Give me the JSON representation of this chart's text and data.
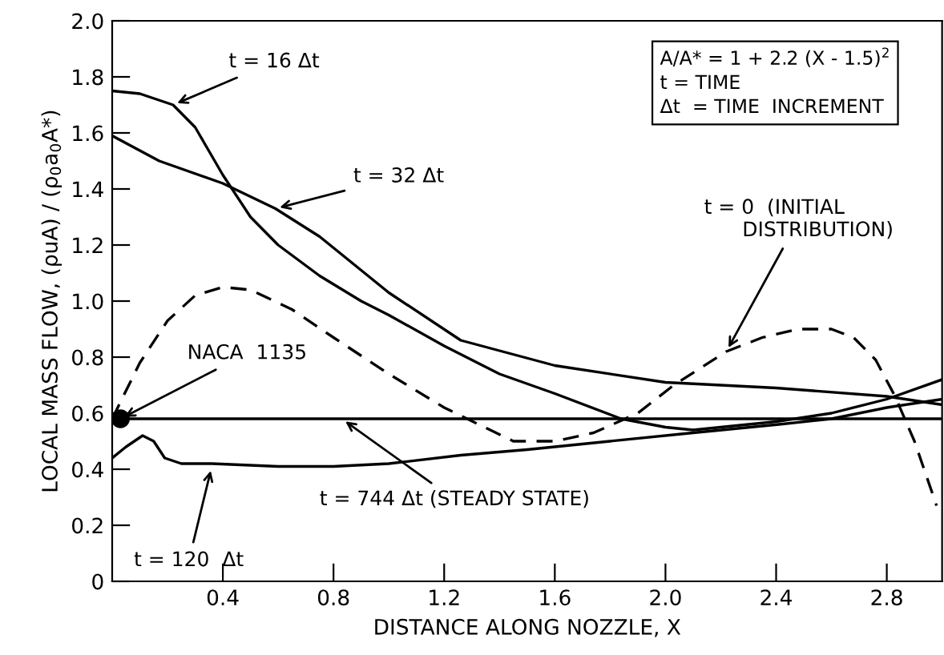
{
  "chart_data": {
    "type": "line",
    "xlabel": "DISTANCE ALONG NOZZLE, X",
    "ylabel": "LOCAL MASS FLOW, (ρuA) / (ρ$_{0}$a$_{0}$A*)",
    "xlim": [
      0,
      3.0
    ],
    "ylim": [
      0,
      2.0
    ],
    "xticks": [
      0.4,
      0.8,
      1.2,
      1.6,
      {
        "value": 2,
        "label": "2.0"
      },
      2.4,
      2.8
    ],
    "yticks": [
      0,
      0.2,
      0.4,
      0.6,
      0.8,
      {
        "value": 1,
        "label": "1.0"
      },
      1.2,
      1.4,
      1.6,
      1.8,
      {
        "value": 2,
        "label": "2.0"
      }
    ],
    "grid": false,
    "legend": false,
    "marker": "none",
    "series": [
      {
        "color": "#000000",
        "line_style": "solid",
        "x": [
          0,
          0.1,
          0.22,
          0.3,
          0.4,
          0.5,
          0.6,
          0.75,
          0.9,
          1.0,
          1.2,
          1.4,
          1.6,
          1.84,
          2.0,
          2.1,
          2.2,
          2.4,
          2.6,
          2.8,
          3.0
        ],
        "values": [
          1.75,
          1.74,
          1.7,
          1.62,
          1.45,
          1.3,
          1.2,
          1.09,
          1.0,
          0.95,
          0.84,
          0.74,
          0.67,
          0.58,
          0.55,
          0.54,
          0.55,
          0.57,
          0.6,
          0.65,
          0.72
        ]
      },
      {
        "color": "#000000",
        "line_style": "solid",
        "x": [
          0,
          0.17,
          0.4,
          0.59,
          0.75,
          1.0,
          1.26,
          1.6,
          2.0,
          2.4,
          2.8,
          3.0
        ],
        "values": [
          1.59,
          1.5,
          1.42,
          1.33,
          1.23,
          1.03,
          0.86,
          0.77,
          0.71,
          0.69,
          0.66,
          0.63
        ]
      },
      {
        "color": "#000000",
        "line_style": "dashed",
        "x": [
          0,
          0.1,
          0.2,
          0.3,
          0.4,
          0.5,
          0.65,
          0.8,
          1.0,
          1.2,
          1.45,
          1.6,
          1.74,
          1.9,
          2.03,
          2.22,
          2.35,
          2.48,
          2.6,
          2.68,
          2.76,
          2.83,
          2.9,
          2.98
        ],
        "values": [
          0.58,
          0.78,
          0.93,
          1.02,
          1.05,
          1.04,
          0.97,
          0.87,
          0.74,
          0.62,
          0.5,
          0.5,
          0.53,
          0.6,
          0.7,
          0.82,
          0.87,
          0.9,
          0.9,
          0.87,
          0.79,
          0.66,
          0.5,
          0.27
        ]
      },
      {
        "color": "#000000",
        "line_style": "solid",
        "x": [
          0,
          3.0
        ],
        "values": [
          0.58,
          0.58
        ]
      },
      {
        "color": "#000000",
        "line_style": "solid",
        "x": [
          0,
          0.05,
          0.11,
          0.15,
          0.19,
          0.25,
          0.36,
          0.6,
          0.8,
          1.0,
          1.26,
          1.5,
          1.8,
          2.1,
          2.41,
          2.6,
          2.8,
          3.0
        ],
        "values": [
          0.44,
          0.48,
          0.52,
          0.5,
          0.44,
          0.42,
          0.42,
          0.41,
          0.41,
          0.42,
          0.45,
          0.47,
          0.5,
          0.53,
          0.56,
          0.58,
          0.62,
          0.65
        ]
      },
      {
        "type": "scatter",
        "marker": "circle",
        "color": "#000000",
        "x": [
          0.03
        ],
        "values": [
          0.58
        ]
      }
    ],
    "annotations": [
      {
        "text": "t = 16 Δt",
        "x": 0.22,
        "y": 1.7
      },
      {
        "text": "t = 32 Δt",
        "x": 0.59,
        "y": 1.33
      },
      {
        "text": "t = 0  (INITIAL\n      DISTRIBUTION)",
        "x": 2.22,
        "y": 0.82
      },
      {
        "text": "NACA  1135",
        "x": 0.03,
        "y": 0.58
      },
      {
        "text": "t = 744 Δt (STEADY STATE)",
        "x": 0.83,
        "y": 0.58
      },
      {
        "text": "t = 120  Δt",
        "x": 0.36,
        "y": 0.41
      },
      "A/A* = 1 + 2.2 (X - 1.5)$^{2}$\nt = TIME\nΔt  = TIME  INCREMENT"
    ]
  }
}
